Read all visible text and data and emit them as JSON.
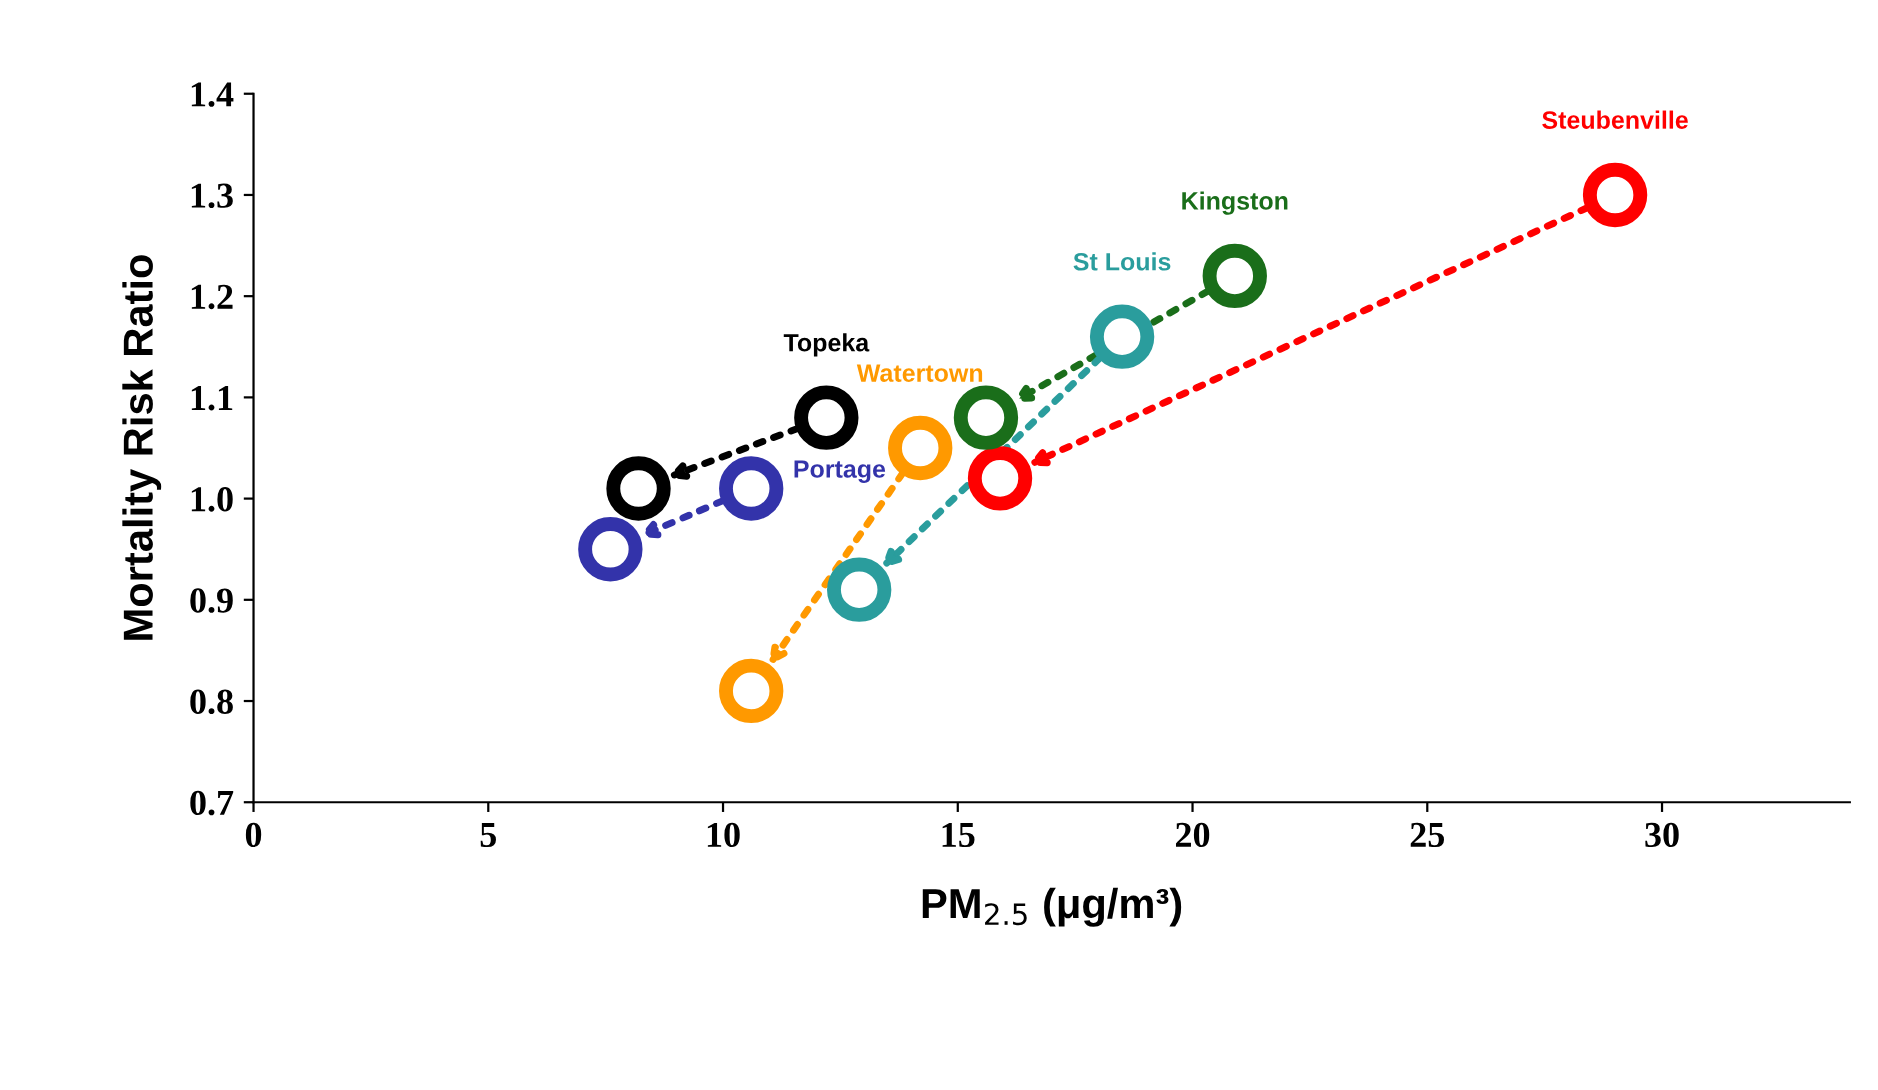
{
  "chart_data": {
    "type": "scatter",
    "xlabel": "PM$_{2.5}$ (μg/m³)",
    "ylabel": "Mortality Risk Ratio",
    "xlim": [
      0,
      34
    ],
    "ylim": [
      0.7,
      1.4
    ],
    "xticks": [
      0,
      5,
      10,
      15,
      20,
      25,
      30
    ],
    "yticks": [
      {
        "value": 0.7,
        "label": "0.7"
      },
      {
        "value": 0.8,
        "label": "0.8"
      },
      {
        "value": 0.9,
        "label": "0.9"
      },
      {
        "value": 1.0,
        "label": "1.0"
      },
      {
        "value": 1.1,
        "label": "1.1"
      },
      {
        "value": 1.2,
        "label": "1.2"
      },
      {
        "value": 1.3,
        "label": "1.3"
      },
      {
        "value": 1.4,
        "label": "1.4"
      }
    ],
    "grid": false,
    "legend": false,
    "marker": "circle",
    "line_style": "dotted",
    "series": [
      {
        "name": "Steubenville",
        "color": "#ff0000",
        "x": [
          29.0,
          15.9
        ],
        "values": [
          1.3,
          1.02
        ]
      },
      {
        "name": "Kingston",
        "color": "#1a6e1a",
        "x": [
          20.9,
          15.6
        ],
        "values": [
          1.22,
          1.08
        ]
      },
      {
        "name": "St Louis",
        "color": "#2a9d9d",
        "x": [
          18.5,
          12.9
        ],
        "values": [
          1.16,
          0.91
        ]
      },
      {
        "name": "Watertown",
        "color": "#ff9900",
        "x": [
          14.2,
          10.6
        ],
        "values": [
          1.05,
          0.81
        ]
      },
      {
        "name": "Topeka",
        "color": "#000000",
        "x": [
          12.2,
          8.2
        ],
        "values": [
          1.08,
          1.01
        ]
      },
      {
        "name": "Portage",
        "color": "#3333aa",
        "x": [
          10.6,
          7.6
        ],
        "values": [
          1.01,
          0.95
        ]
      }
    ]
  }
}
